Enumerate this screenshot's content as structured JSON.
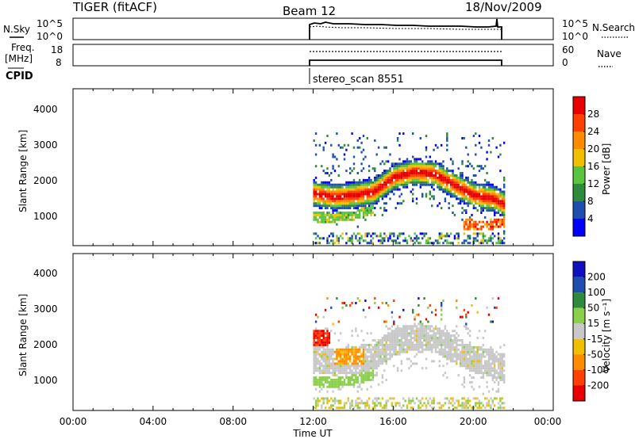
{
  "header": {
    "radar_title": "TIGER (fitACF)",
    "beam": "Beam 12",
    "date": "18/Nov/2009"
  },
  "top_panels": {
    "nsky_label": "N.Sky",
    "nsky_ticks": [
      "10^5",
      "10^0"
    ],
    "nsearch_label": "N.Search",
    "freq_label_1": "Freq.",
    "freq_label_2": "[MHz]",
    "freq_ticks": [
      "18",
      "8"
    ],
    "nave_label": "Nave",
    "nave_ticks": [
      "60",
      "0"
    ],
    "cpid_label": "CPID",
    "cpid_value": "stereo_scan 8551"
  },
  "time_axis": {
    "ticks": [
      "00:00",
      "04:00",
      "08:00",
      "12:00",
      "16:00",
      "20:00",
      "00:00"
    ],
    "label": "Time UT"
  },
  "colors": {
    "power": [
      "#0000ff",
      "#1e4fb0",
      "#2f8a3c",
      "#5bc43e",
      "#f0c000",
      "#ff8c00",
      "#ff4000",
      "#e80000"
    ],
    "velocity": [
      "#e80000",
      "#ff4000",
      "#ff8c00",
      "#f0c000",
      "#c8c8c8",
      "#8ad04a",
      "#2f8a3c",
      "#1e4fb0",
      "#1010c0"
    ]
  },
  "chart_data": [
    {
      "type": "heatmap",
      "name": "power",
      "ylabel": "Slant Range [km]",
      "yticks": [
        "4000",
        "3000",
        "2000",
        "1000"
      ],
      "ylim": [
        180,
        4560
      ],
      "xlim": [
        0,
        24
      ],
      "data_start_hour": 12.0,
      "data_end_hour": 21.5,
      "colorbar_label": "Power [dB]",
      "colorbar_ticks": [
        "28",
        "24",
        "20",
        "16",
        "12",
        "8",
        "4"
      ],
      "colorbar_range": [
        0,
        32
      ],
      "features": [
        {
          "kind": "main_band",
          "x": [
            12,
            13,
            14,
            15,
            16,
            17,
            18,
            19,
            20,
            21,
            21.5
          ],
          "y": [
            1600,
            1500,
            1550,
            1650,
            2050,
            2200,
            2150,
            1850,
            1550,
            1450,
            1300
          ],
          "max_power": 28
        },
        {
          "kind": "lower_band",
          "x": [
            12,
            13,
            14,
            15
          ],
          "y": [
            950,
            920,
            1000,
            1150
          ],
          "max_power": 16
        },
        {
          "kind": "lower_band",
          "x": [
            19.5,
            20.5,
            21.5
          ],
          "y": [
            750,
            700,
            800
          ],
          "max_power": 28
        },
        {
          "kind": "near_range_clutter",
          "x": [
            12,
            21.5
          ],
          "y": [
            350,
            350
          ],
          "max_power": 12
        }
      ]
    },
    {
      "type": "heatmap",
      "name": "velocity",
      "ylabel": "Slant Range [km]",
      "yticks": [
        "4000",
        "3000",
        "2000",
        "1000"
      ],
      "ylim": [
        180,
        4560
      ],
      "xlim": [
        0,
        24
      ],
      "data_start_hour": 12.0,
      "data_end_hour": 21.5,
      "colorbar_label": "Velocity [m s⁻¹]",
      "colorbar_ticks": [
        "200",
        "100",
        "50",
        "15",
        "-15",
        "-50",
        "-100",
        "-200"
      ],
      "colorbar_range": [
        -250,
        250
      ],
      "features": [
        {
          "kind": "ground_scatter_band",
          "x": [
            12,
            13,
            14,
            15,
            16,
            17,
            18,
            19,
            20,
            21,
            21.5
          ],
          "y": [
            1600,
            1500,
            1550,
            1650,
            2050,
            2200,
            2150,
            1850,
            1550,
            1450,
            1300
          ],
          "velocity": 0
        },
        {
          "kind": "patch",
          "x": [
            13.0,
            14.5
          ],
          "y": [
            1400,
            1900
          ],
          "velocity": -60
        },
        {
          "kind": "patch",
          "x": [
            12.0,
            12.8
          ],
          "y": [
            1950,
            2400
          ],
          "velocity": -180
        },
        {
          "kind": "lower_band",
          "x": [
            12,
            13,
            14,
            15
          ],
          "y": [
            950,
            920,
            1000,
            1150
          ],
          "velocity": 30
        }
      ]
    }
  ]
}
